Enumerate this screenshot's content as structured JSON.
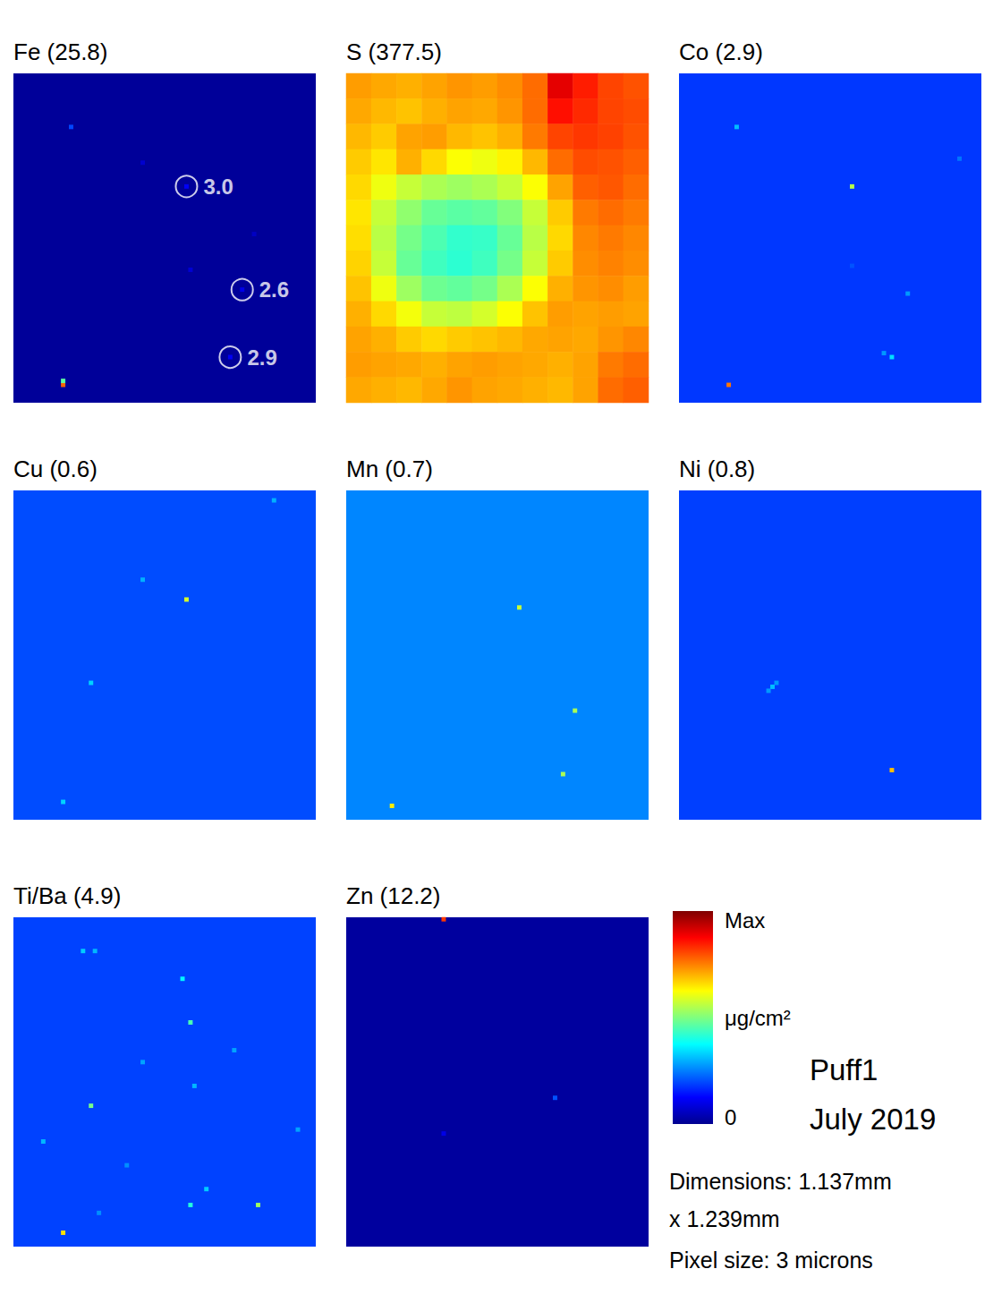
{
  "chart_data": [
    {
      "type": "heatmap",
      "title": "Fe (25.8)",
      "zlim": [
        0,
        25.8
      ],
      "background": 0.3,
      "grid_size": [
        76,
        83
      ],
      "cells": [
        [
          14,
          13,
          5.0
        ],
        [
          43,
          28,
          3.0
        ],
        [
          57,
          54,
          2.6
        ],
        [
          54,
          71,
          2.9
        ],
        [
          12,
          78,
          20.0
        ],
        [
          12,
          77,
          12.0
        ],
        [
          44,
          49,
          2.0
        ],
        [
          32,
          22,
          1.8
        ],
        [
          60,
          40,
          1.5
        ]
      ],
      "annotations": [
        {
          "text": "3.0",
          "cell": [
            43,
            28
          ]
        },
        {
          "text": "2.6",
          "cell": [
            57,
            54
          ]
        },
        {
          "text": "2.9",
          "cell": [
            54,
            71
          ]
        }
      ]
    },
    {
      "type": "heatmap",
      "title": "S (377.5)",
      "zlim": [
        0,
        377.5
      ],
      "grid_size": [
        12,
        13
      ],
      "values": [
        [
          272,
          268,
          265,
          270,
          275,
          272,
          278,
          290,
          340,
          320,
          305,
          300
        ],
        [
          268,
          262,
          258,
          265,
          270,
          268,
          275,
          290,
          325,
          315,
          305,
          302
        ],
        [
          262,
          255,
          270,
          272,
          262,
          258,
          265,
          285,
          305,
          310,
          306,
          300
        ],
        [
          255,
          245,
          265,
          250,
          235,
          230,
          240,
          262,
          290,
          302,
          300,
          295
        ],
        [
          250,
          230,
          215,
          205,
          200,
          205,
          215,
          235,
          270,
          295,
          298,
          290
        ],
        [
          245,
          215,
          195,
          180,
          175,
          178,
          190,
          215,
          255,
          285,
          290,
          285
        ],
        [
          248,
          210,
          185,
          170,
          160,
          162,
          180,
          210,
          250,
          280,
          285,
          280
        ],
        [
          252,
          215,
          180,
          165,
          158,
          165,
          185,
          215,
          255,
          278,
          282,
          278
        ],
        [
          258,
          230,
          200,
          182,
          178,
          185,
          205,
          235,
          265,
          275,
          278,
          272
        ],
        [
          265,
          250,
          232,
          215,
          212,
          220,
          235,
          258,
          272,
          270,
          272,
          270
        ],
        [
          270,
          265,
          255,
          250,
          255,
          258,
          262,
          268,
          270,
          268,
          275,
          280
        ],
        [
          272,
          270,
          268,
          265,
          270,
          272,
          270,
          268,
          265,
          270,
          285,
          290
        ],
        [
          268,
          265,
          262,
          268,
          275,
          270,
          268,
          265,
          262,
          270,
          290,
          295
        ]
      ]
    },
    {
      "type": "heatmap",
      "title": "Co (2.9)",
      "zlim": [
        0,
        2.9
      ],
      "background": 0.52,
      "grid_size": [
        76,
        83
      ],
      "cells": [
        [
          14,
          13,
          0.9
        ],
        [
          43,
          28,
          1.6
        ],
        [
          57,
          55,
          0.8
        ],
        [
          53,
          71,
          1.0
        ],
        [
          51,
          70,
          0.8
        ],
        [
          12,
          78,
          2.2
        ],
        [
          70,
          21,
          0.7
        ],
        [
          43,
          48,
          0.6
        ]
      ]
    },
    {
      "type": "heatmap",
      "title": "Cu (0.6)",
      "zlim": [
        0,
        0.6
      ],
      "background": 0.12,
      "grid_size": [
        76,
        83
      ],
      "cells": [
        [
          43,
          27,
          0.35
        ],
        [
          19,
          48,
          0.2
        ],
        [
          32,
          22,
          0.18
        ],
        [
          12,
          78,
          0.2
        ],
        [
          65,
          2,
          0.18
        ]
      ]
    },
    {
      "type": "heatmap",
      "title": "Mn (0.7)",
      "zlim": [
        0,
        0.7
      ],
      "background": 0.18,
      "grid_size": [
        76,
        83
      ],
      "cells": [
        [
          43,
          29,
          0.4
        ],
        [
          57,
          55,
          0.38
        ],
        [
          54,
          71,
          0.38
        ],
        [
          11,
          79,
          0.45
        ]
      ]
    },
    {
      "type": "heatmap",
      "title": "Ni (0.8)",
      "zlim": [
        0,
        0.8
      ],
      "background": 0.15,
      "grid_size": [
        76,
        83
      ],
      "cells": [
        [
          53,
          70,
          0.55
        ],
        [
          23,
          49,
          0.25
        ],
        [
          22,
          50,
          0.22
        ],
        [
          24,
          48,
          0.22
        ]
      ]
    },
    {
      "type": "heatmap",
      "title": "Ti/Ba (4.9)",
      "zlim": [
        0,
        4.9
      ],
      "background": 0.93,
      "grid_size": [
        76,
        83
      ],
      "cells": [
        [
          17,
          8,
          1.6
        ],
        [
          20,
          8,
          1.5
        ],
        [
          44,
          26,
          2.2
        ],
        [
          42,
          15,
          1.8
        ],
        [
          19,
          47,
          2.4
        ],
        [
          32,
          36,
          1.4
        ],
        [
          44,
          72,
          2.0
        ],
        [
          61,
          72,
          2.6
        ],
        [
          12,
          79,
          3.2
        ],
        [
          7,
          56,
          1.5
        ],
        [
          48,
          68,
          1.6
        ],
        [
          55,
          33,
          1.4
        ],
        [
          28,
          62,
          1.3
        ],
        [
          71,
          53,
          1.4
        ],
        [
          21,
          74,
          1.3
        ],
        [
          45,
          42,
          1.5
        ]
      ]
    },
    {
      "type": "heatmap",
      "title": "Zn (12.2)",
      "zlim": [
        0,
        12.2
      ],
      "background": 0.2,
      "grid_size": [
        76,
        83
      ],
      "cells": [
        [
          24,
          0,
          10.0
        ],
        [
          52,
          45,
          2.5
        ],
        [
          24,
          54,
          1.2
        ]
      ]
    }
  ],
  "colorbar": {
    "max_label": "Max",
    "unit": "μg/cm²",
    "min_label": "0"
  },
  "sample": {
    "name": "Puff1",
    "date": "July 2019"
  },
  "dimensions": [
    "Dimensions: 1.137mm",
    "x 1.239mm"
  ],
  "pixel_size": "Pixel size: 3 microns"
}
